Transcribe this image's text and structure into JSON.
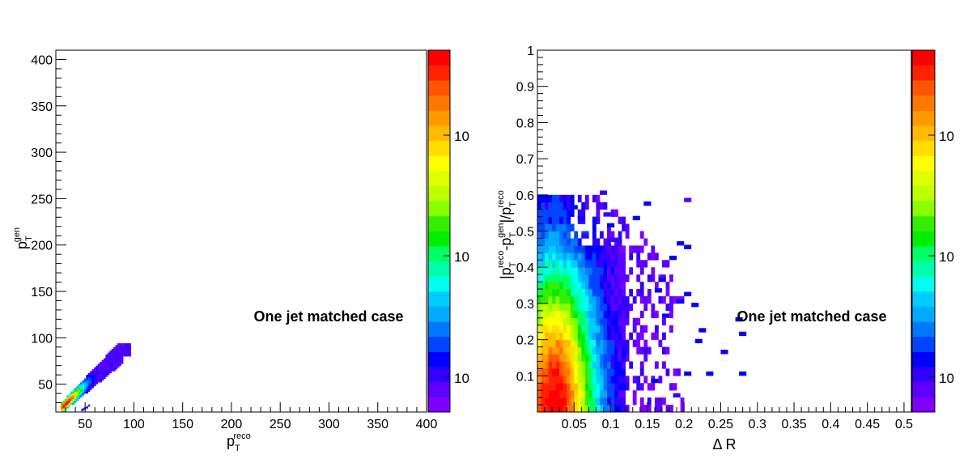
{
  "chart_data": [
    {
      "type": "heatmap",
      "annotation": "One jet matched case",
      "xlabel": {
        "base": "p",
        "sub": "T",
        "sup": "reco"
      },
      "ylabel": {
        "base": "p",
        "sub": "T",
        "sup": "gen"
      },
      "xlim": [
        20,
        400
      ],
      "ylim": [
        20,
        410
      ],
      "x_ticks": [
        50,
        100,
        150,
        200,
        250,
        300,
        350,
        400
      ],
      "y_ticks": [
        50,
        100,
        150,
        200,
        250,
        300,
        350,
        400
      ],
      "colorbar": {
        "scale": "log",
        "tick_labels": [
          "10",
          "10",
          "10"
        ]
      },
      "region": {
        "description_shape": "narrow diagonal band of entries along pT_gen ≈ pT_reco",
        "x_range": [
          25,
          95
        ],
        "y_range": [
          20,
          92
        ],
        "peak": [
          30,
          28
        ]
      }
    },
    {
      "type": "heatmap",
      "annotation": "One jet matched case",
      "xlabel": "Δ R",
      "ylabel": {
        "text": "|p_T^{reco}-p_T^{gen}|/p_T^{reco}"
      },
      "ylabel_parts": [
        {
          "t": "|p",
          "k": "n"
        },
        {
          "t": "T",
          "k": "sub"
        },
        {
          "t": "reco",
          "k": "sup"
        },
        {
          "t": "-p",
          "k": "n"
        },
        {
          "t": "T",
          "k": "sub"
        },
        {
          "t": "gen",
          "k": "sup"
        },
        {
          "t": "|/p",
          "k": "n"
        },
        {
          "t": "T",
          "k": "sub"
        },
        {
          "t": "reco",
          "k": "sup"
        }
      ],
      "xlim": [
        0.0,
        0.51
      ],
      "ylim": [
        0.0,
        1.0
      ],
      "x_ticks": [
        0.05,
        0.1,
        0.15,
        0.2,
        0.25,
        0.3,
        0.35,
        0.4,
        0.45,
        0.5
      ],
      "x_tick_labels": [
        "0.05",
        "0.1",
        "0.15",
        "0.2",
        "0.25",
        "0.3",
        "0.35",
        "0.4",
        "0.45",
        "0.5"
      ],
      "y_ticks": [
        0.1,
        0.2,
        0.3,
        0.4,
        0.5,
        0.6,
        0.7,
        0.8,
        0.9,
        1.0
      ],
      "y_tick_labels": [
        "0.1",
        "0.2",
        "0.3",
        "0.4",
        "0.5",
        "0.6",
        "0.7",
        "0.8",
        "0.9",
        "1"
      ],
      "colorbar": {
        "scale": "log",
        "tick_labels": [
          "10",
          "10",
          "10"
        ]
      },
      "region": {
        "description_shape": "dense at small ΔR and small relative difference, sparse scatter to ΔR≈0.28",
        "x_range": [
          0.0,
          0.28
        ],
        "y_range": [
          0.0,
          0.61
        ]
      }
    }
  ],
  "palette": [
    "#7f00ff",
    "#5c00ff",
    "#3300ff",
    "#0000ff",
    "#0044ff",
    "#0077ff",
    "#00aaff",
    "#00ccff",
    "#00ffee",
    "#00ffaa",
    "#00ff66",
    "#00ee00",
    "#33ee00",
    "#88ff00",
    "#bbff00",
    "#ddff00",
    "#ffff00",
    "#ffdd00",
    "#ffbb00",
    "#ff9900",
    "#ff7700",
    "#ff5500",
    "#ff2200",
    "#ff0000"
  ]
}
